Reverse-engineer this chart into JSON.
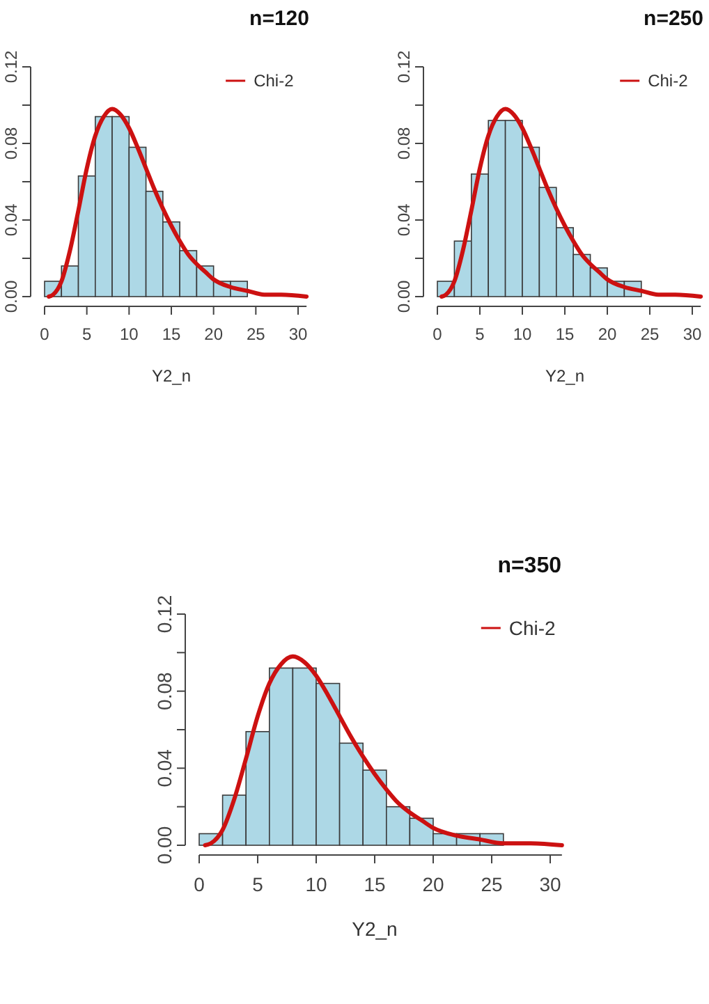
{
  "chart_data": [
    {
      "type": "histogram",
      "title": "n=120",
      "xlabel": "Y2_n",
      "xlim": [
        0,
        31
      ],
      "xticks": [
        0,
        5,
        10,
        15,
        20,
        25,
        30
      ],
      "ylim": [
        0,
        0.12
      ],
      "yticks": [
        {
          "value": 0,
          "label": "0.00"
        },
        {
          "value": 0.02,
          "label": null
        },
        {
          "value": 0.04,
          "label": "0.04"
        },
        {
          "value": 0.06,
          "label": null
        },
        {
          "value": 0.08,
          "label": "0.08"
        },
        {
          "value": 0.1,
          "label": null
        },
        {
          "value": 0.12,
          "label": "0.12"
        }
      ],
      "legend": "top right",
      "series": [
        {
          "color": "#add8e6",
          "bins": [
            0,
            2,
            4,
            6,
            8,
            10,
            12,
            14,
            16,
            18,
            20,
            22,
            24
          ],
          "values": [
            0.008,
            0.016,
            0.063,
            0.094,
            0.094,
            0.078,
            0.055,
            0.039,
            0.024,
            0.016,
            0.008,
            0.008
          ]
        },
        {
          "type": "line",
          "name": "Chi-2",
          "color": "#cc1111",
          "x": [
            0.5,
            1,
            2,
            3,
            4,
            5,
            6,
            7,
            8,
            9,
            10,
            11,
            12,
            13,
            14,
            15,
            16,
            17,
            18,
            19,
            20,
            22,
            24,
            26,
            28,
            31
          ],
          "values": [
            0,
            0.001,
            0.008,
            0.024,
            0.045,
            0.067,
            0.084,
            0.094,
            0.098,
            0.095,
            0.088,
            0.078,
            0.067,
            0.056,
            0.046,
            0.037,
            0.029,
            0.022,
            0.017,
            0.013,
            0.009,
            0.005,
            0.003,
            0.001,
            0.001,
            0
          ]
        }
      ]
    },
    {
      "type": "histogram",
      "title": "n=250",
      "xlabel": "Y2_n",
      "xlim": [
        0,
        31
      ],
      "xticks": [
        0,
        5,
        10,
        15,
        20,
        25,
        30
      ],
      "ylim": [
        0,
        0.12
      ],
      "yticks": [
        {
          "value": 0,
          "label": "0.00"
        },
        {
          "value": 0.02,
          "label": null
        },
        {
          "value": 0.04,
          "label": "0.04"
        },
        {
          "value": 0.06,
          "label": null
        },
        {
          "value": 0.08,
          "label": "0.08"
        },
        {
          "value": 0.1,
          "label": null
        },
        {
          "value": 0.12,
          "label": "0.12"
        }
      ],
      "legend": "top right",
      "series": [
        {
          "color": "#add8e6",
          "bins": [
            0,
            2,
            4,
            6,
            8,
            10,
            12,
            14,
            16,
            18,
            20,
            22,
            24
          ],
          "values": [
            0.008,
            0.029,
            0.064,
            0.092,
            0.092,
            0.078,
            0.057,
            0.036,
            0.022,
            0.015,
            0.008,
            0.008
          ]
        },
        {
          "type": "line",
          "name": "Chi-2",
          "color": "#cc1111",
          "x": [
            0.5,
            1,
            2,
            3,
            4,
            5,
            6,
            7,
            8,
            9,
            10,
            11,
            12,
            13,
            14,
            15,
            16,
            17,
            18,
            19,
            20,
            22,
            24,
            26,
            28,
            31
          ],
          "values": [
            0,
            0.001,
            0.008,
            0.024,
            0.045,
            0.067,
            0.084,
            0.094,
            0.098,
            0.095,
            0.088,
            0.078,
            0.067,
            0.056,
            0.046,
            0.037,
            0.029,
            0.022,
            0.017,
            0.013,
            0.009,
            0.005,
            0.003,
            0.001,
            0.001,
            0
          ]
        }
      ]
    },
    {
      "type": "histogram",
      "title": "n=350",
      "xlabel": "Y2_n",
      "xlim": [
        0,
        31
      ],
      "xticks": [
        0,
        5,
        10,
        15,
        20,
        25,
        30
      ],
      "ylim": [
        0,
        0.12
      ],
      "yticks": [
        {
          "value": 0,
          "label": "0.00"
        },
        {
          "value": 0.02,
          "label": null
        },
        {
          "value": 0.04,
          "label": "0.04"
        },
        {
          "value": 0.06,
          "label": null
        },
        {
          "value": 0.08,
          "label": "0.08"
        },
        {
          "value": 0.1,
          "label": null
        },
        {
          "value": 0.12,
          "label": "0.12"
        }
      ],
      "legend": "top right",
      "series": [
        {
          "color": "#add8e6",
          "bins": [
            0,
            2,
            4,
            6,
            8,
            10,
            12,
            14,
            16,
            18,
            20,
            22,
            24,
            26
          ],
          "values": [
            0.006,
            0.026,
            0.059,
            0.092,
            0.092,
            0.084,
            0.053,
            0.039,
            0.02,
            0.014,
            0.006,
            0.006,
            0.006
          ]
        },
        {
          "type": "line",
          "name": "Chi-2",
          "color": "#cc1111",
          "x": [
            0.5,
            1,
            2,
            3,
            4,
            5,
            6,
            7,
            8,
            9,
            10,
            11,
            12,
            13,
            14,
            15,
            16,
            17,
            18,
            19,
            20,
            22,
            24,
            26,
            28,
            31
          ],
          "values": [
            0,
            0.001,
            0.008,
            0.024,
            0.045,
            0.067,
            0.084,
            0.094,
            0.098,
            0.095,
            0.088,
            0.078,
            0.067,
            0.056,
            0.046,
            0.037,
            0.029,
            0.022,
            0.017,
            0.013,
            0.009,
            0.005,
            0.003,
            0.001,
            0.001,
            0
          ]
        }
      ]
    }
  ]
}
